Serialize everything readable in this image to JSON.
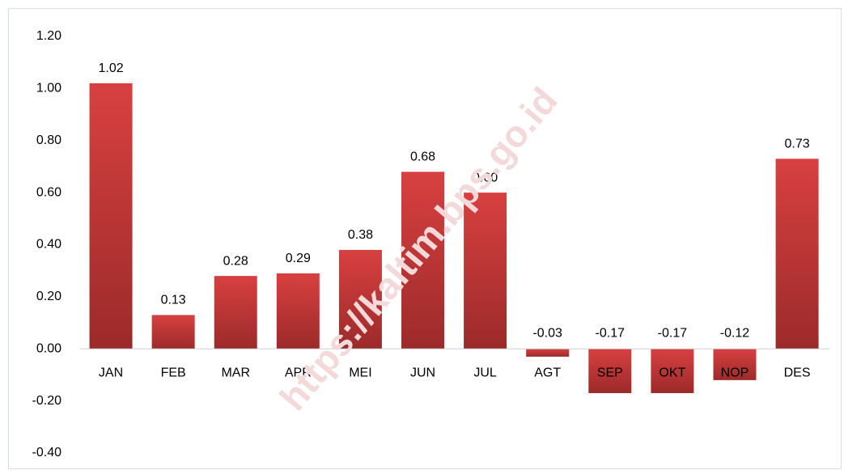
{
  "chart_data": {
    "type": "bar",
    "categories": [
      "JAN",
      "FEB",
      "MAR",
      "APR",
      "MEI",
      "JUN",
      "JUL",
      "AGT",
      "SEP",
      "OKT",
      "NOP",
      "DES"
    ],
    "values": [
      1.02,
      0.13,
      0.28,
      0.29,
      0.38,
      0.68,
      0.6,
      -0.03,
      -0.17,
      -0.17,
      -0.12,
      0.73
    ],
    "value_labels": [
      "1.02",
      "0.13",
      "0.28",
      "0.29",
      "0.38",
      "0.68",
      "0.60",
      "-0.03",
      "-0.17",
      "-0.17",
      "-0.12",
      "0.73"
    ],
    "color": "#cf3a3a",
    "ylim": [
      -0.4,
      1.2
    ],
    "yticks": [
      {
        "value": -0.4,
        "label": "-0.40"
      },
      {
        "value": -0.2,
        "label": "-0.20"
      },
      {
        "value": 0,
        "label": "0.00"
      },
      {
        "value": 0.2,
        "label": "0.20"
      },
      {
        "value": 0.4,
        "label": "0.40"
      },
      {
        "value": 0.6,
        "label": "0.60"
      },
      {
        "value": 0.8,
        "label": "0.80"
      },
      {
        "value": 1.0,
        "label": "1.00"
      },
      {
        "value": 1.2,
        "label": "1.20"
      }
    ],
    "grid": false,
    "watermark": "https://kaltim.bps.go.id"
  }
}
